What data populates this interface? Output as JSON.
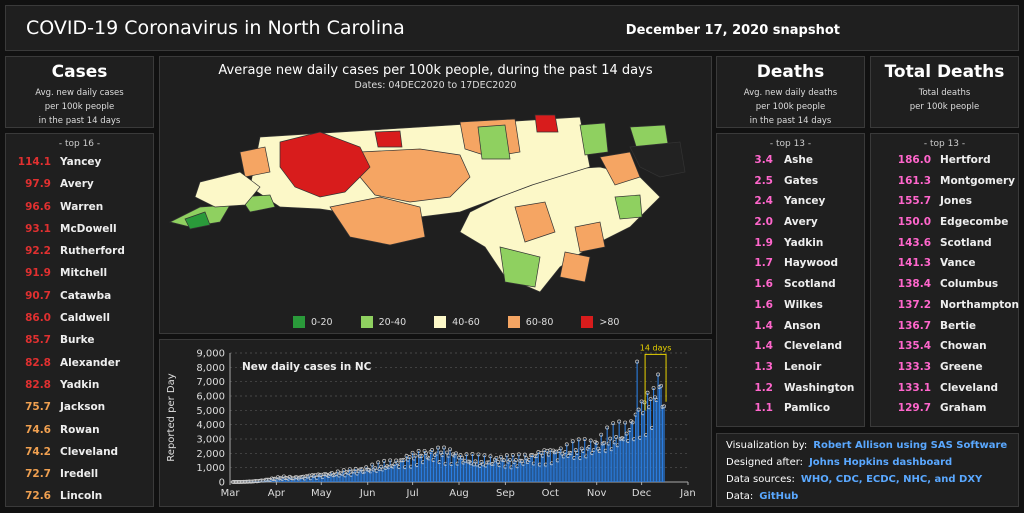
{
  "header": {
    "title": "COVID-19 Coronavirus in North Carolina",
    "date": "December 17, 2020 snapshot"
  },
  "cases": {
    "title": "Cases",
    "subtitle": [
      "Avg. new daily cases",
      "per 100k people",
      "in the past 14 days"
    ],
    "top_label": "- top 16 -",
    "rows": [
      {
        "value": "114.1",
        "name": "Yancey",
        "color": "#e03030"
      },
      {
        "value": "97.9",
        "name": "Avery",
        "color": "#e03030"
      },
      {
        "value": "96.6",
        "name": "Warren",
        "color": "#e03030"
      },
      {
        "value": "93.1",
        "name": "McDowell",
        "color": "#e03030"
      },
      {
        "value": "92.2",
        "name": "Rutherford",
        "color": "#e03030"
      },
      {
        "value": "91.9",
        "name": "Mitchell",
        "color": "#e03030"
      },
      {
        "value": "90.7",
        "name": "Catawba",
        "color": "#e03030"
      },
      {
        "value": "86.0",
        "name": "Caldwell",
        "color": "#e03030"
      },
      {
        "value": "85.7",
        "name": "Burke",
        "color": "#e03030"
      },
      {
        "value": "82.8",
        "name": "Alexander",
        "color": "#e03030"
      },
      {
        "value": "82.8",
        "name": "Yadkin",
        "color": "#e03030"
      },
      {
        "value": "75.7",
        "name": "Jackson",
        "color": "#f0a050"
      },
      {
        "value": "74.6",
        "name": "Rowan",
        "color": "#f0a050"
      },
      {
        "value": "74.2",
        "name": "Cleveland",
        "color": "#f0a050"
      },
      {
        "value": "72.7",
        "name": "Iredell",
        "color": "#f0a050"
      },
      {
        "value": "72.6",
        "name": "Lincoln",
        "color": "#f0a050"
      }
    ]
  },
  "map": {
    "title": "Average new daily cases per 100k people, during the past 14 days",
    "dates": "Dates: 04DEC2020 to 17DEC2020",
    "legend": [
      {
        "label": "0-20",
        "color": "#2a9a3a"
      },
      {
        "label": "20-40",
        "color": "#8fd060"
      },
      {
        "label": "40-60",
        "color": "#fcf8c8"
      },
      {
        "label": "60-80",
        "color": "#f5a563"
      },
      {
        "label": ">80",
        "color": "#d81c1c"
      }
    ]
  },
  "deaths": {
    "title": "Deaths",
    "subtitle": [
      "Avg. new daily deaths",
      "per 100k people",
      "in the past 14 days"
    ],
    "top_label": "- top 13 -",
    "rows": [
      {
        "value": "3.4",
        "name": "Ashe"
      },
      {
        "value": "2.5",
        "name": "Gates"
      },
      {
        "value": "2.4",
        "name": "Yancey"
      },
      {
        "value": "2.0",
        "name": "Avery"
      },
      {
        "value": "1.9",
        "name": "Yadkin"
      },
      {
        "value": "1.7",
        "name": "Haywood"
      },
      {
        "value": "1.6",
        "name": "Scotland"
      },
      {
        "value": "1.6",
        "name": "Wilkes"
      },
      {
        "value": "1.4",
        "name": "Anson"
      },
      {
        "value": "1.4",
        "name": "Cleveland"
      },
      {
        "value": "1.3",
        "name": "Lenoir"
      },
      {
        "value": "1.2",
        "name": "Washington"
      },
      {
        "value": "1.1",
        "name": "Pamlico"
      }
    ]
  },
  "total_deaths": {
    "title": "Total Deaths",
    "subtitle": [
      "Total deaths",
      "per 100k people"
    ],
    "top_label": "- top 13 -",
    "rows": [
      {
        "value": "186.0",
        "name": "Hertford"
      },
      {
        "value": "161.3",
        "name": "Montgomery"
      },
      {
        "value": "155.7",
        "name": "Jones"
      },
      {
        "value": "150.0",
        "name": "Edgecombe"
      },
      {
        "value": "143.6",
        "name": "Scotland"
      },
      {
        "value": "141.3",
        "name": "Vance"
      },
      {
        "value": "138.4",
        "name": "Columbus"
      },
      {
        "value": "137.2",
        "name": "Northampton"
      },
      {
        "value": "136.7",
        "name": "Bertie"
      },
      {
        "value": "135.4",
        "name": "Chowan"
      },
      {
        "value": "133.3",
        "name": "Greene"
      },
      {
        "value": "133.1",
        "name": "Cleveland"
      },
      {
        "value": "129.7",
        "name": "Graham"
      }
    ]
  },
  "colors": {
    "death_value": "#ff66cc",
    "bar": "#2a7de0",
    "link": "#5aa8ff",
    "highlight": "#e8d200"
  },
  "credits": [
    {
      "label": "Visualization by:",
      "link": "Robert Allison using SAS Software"
    },
    {
      "label": "Designed after:",
      "link": "Johns Hopkins dashboard"
    },
    {
      "label": "Data sources:",
      "link": "WHO, CDC, ECDC, NHC, and DXY"
    },
    {
      "label": "Data:",
      "link": "GitHub"
    }
  ],
  "chart_data": {
    "type": "bar",
    "title": "New daily cases in NC",
    "ylabel": "Reported per Day",
    "xlabel": "",
    "ylim": [
      0,
      9000
    ],
    "yticks": [
      "0",
      "1,000",
      "2,000",
      "3,000",
      "4,000",
      "5,000",
      "6,000",
      "7,000",
      "8,000",
      "9,000"
    ],
    "xticks": [
      "Mar",
      "Apr",
      "May",
      "Jun",
      "Jul",
      "Aug",
      "Sep",
      "Oct",
      "Nov",
      "Dec",
      "Jan"
    ],
    "annotation": "14 days",
    "weekly": [
      {
        "week": "Mar 1",
        "avg": 0
      },
      {
        "week": "Mar 8",
        "avg": 5
      },
      {
        "week": "Mar 15",
        "avg": 30
      },
      {
        "week": "Mar 22",
        "avg": 90
      },
      {
        "week": "Mar 29",
        "avg": 200
      },
      {
        "week": "Apr 5",
        "avg": 300
      },
      {
        "week": "Apr 12",
        "avg": 280
      },
      {
        "week": "Apr 19",
        "avg": 330
      },
      {
        "week": "Apr 26",
        "avg": 420
      },
      {
        "week": "May 3",
        "avg": 480
      },
      {
        "week": "May 10",
        "avg": 550
      },
      {
        "week": "May 17",
        "avg": 650
      },
      {
        "week": "May 24",
        "avg": 750
      },
      {
        "week": "May 31",
        "avg": 850
      },
      {
        "week": "Jun 7",
        "avg": 1000
      },
      {
        "week": "Jun 14",
        "avg": 1150
      },
      {
        "week": "Jun 21",
        "avg": 1300
      },
      {
        "week": "Jun 28",
        "avg": 1550
      },
      {
        "week": "Jul 5",
        "avg": 1750
      },
      {
        "week": "Jul 12",
        "avg": 1900
      },
      {
        "week": "Jul 19",
        "avg": 1950
      },
      {
        "week": "Jul 26",
        "avg": 1850
      },
      {
        "week": "Aug 2",
        "avg": 1650
      },
      {
        "week": "Aug 9",
        "avg": 1500
      },
      {
        "week": "Aug 16",
        "avg": 1400
      },
      {
        "week": "Aug 23",
        "avg": 1450
      },
      {
        "week": "Aug 30",
        "avg": 1500
      },
      {
        "week": "Sep 6",
        "avg": 1450
      },
      {
        "week": "Sep 13",
        "avg": 1550
      },
      {
        "week": "Sep 20",
        "avg": 1700
      },
      {
        "week": "Sep 27",
        "avg": 1850
      },
      {
        "week": "Oct 4",
        "avg": 1950
      },
      {
        "week": "Oct 11",
        "avg": 2100
      },
      {
        "week": "Oct 18",
        "avg": 2200
      },
      {
        "week": "Oct 25",
        "avg": 2350
      },
      {
        "week": "Nov 1",
        "avg": 2500
      },
      {
        "week": "Nov 8",
        "avg": 2900
      },
      {
        "week": "Nov 15",
        "avg": 3200
      },
      {
        "week": "Nov 22",
        "avg": 3450
      },
      {
        "week": "Nov 29",
        "avg": 4500
      },
      {
        "week": "Dec 6",
        "avg": 5200
      },
      {
        "week": "Dec 13",
        "avg": 5900
      }
    ],
    "spikes": [
      {
        "date": "Nov 28",
        "value": 8400
      },
      {
        "date": "Dec 12",
        "value": 7500
      }
    ]
  }
}
